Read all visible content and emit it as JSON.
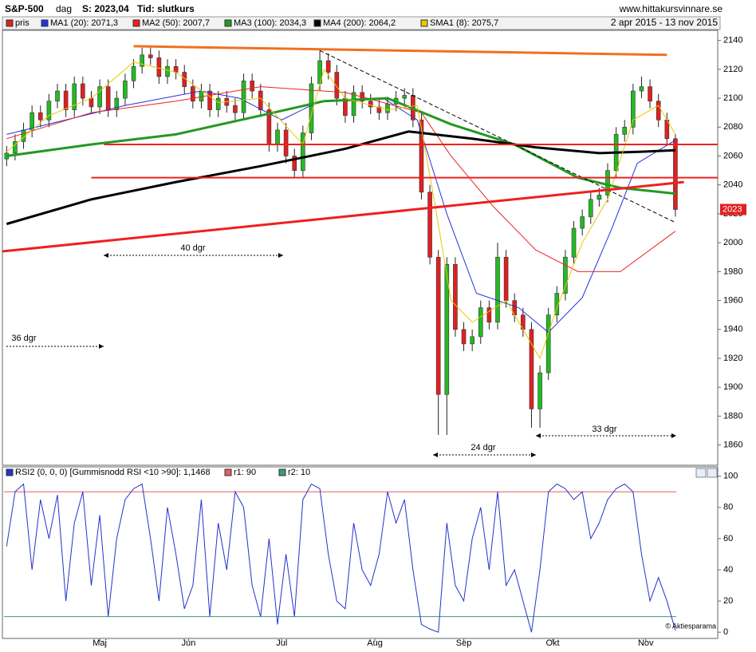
{
  "header": {
    "symbol": "S&P-500",
    "period": "dag",
    "last": "S: 2023,04",
    "mode": "Tid: slutkurs",
    "site": "www.hittakursvinnare.se",
    "range": "2 apr 2015 - 13 nov 2015"
  },
  "chart_data": [
    {
      "type": "candlestick",
      "name": "pris",
      "up_color": "#22bb22",
      "down_color": "#e02020",
      "x": [
        0,
        2,
        4,
        6,
        8,
        10,
        12,
        14,
        16,
        18,
        20,
        22,
        24,
        26,
        28,
        30,
        32,
        34,
        36,
        38,
        40,
        42,
        44,
        46,
        48,
        50,
        52,
        54,
        56,
        58,
        60,
        62,
        64,
        66,
        68,
        70,
        72,
        74,
        76,
        78,
        80,
        82,
        84,
        86,
        88,
        90,
        92,
        94,
        96,
        98,
        100,
        102,
        104,
        106,
        108,
        110,
        112,
        114,
        116,
        118,
        120,
        122,
        124,
        126,
        128,
        130,
        132,
        134,
        136,
        138,
        140,
        142,
        144,
        146,
        148,
        150,
        152,
        154,
        156,
        158
      ],
      "open": [
        2058,
        2062,
        2070,
        2078,
        2090,
        2085,
        2098,
        2105,
        2092,
        2110,
        2100,
        2094,
        2108,
        2092,
        2100,
        2112,
        2122,
        2130,
        2128,
        2115,
        2122,
        2118,
        2108,
        2098,
        2105,
        2092,
        2100,
        2095,
        2090,
        2112,
        2105,
        2092,
        2068,
        2078,
        2060,
        2050,
        2076,
        2110,
        2126,
        2118,
        2100,
        2088,
        2104,
        2098,
        2094,
        2090,
        2096,
        2100,
        2102,
        2085,
        2035,
        1990,
        1895,
        1985,
        1940,
        1930,
        1935,
        1955,
        1945,
        1990,
        1960,
        1950,
        1940,
        1885,
        1910,
        1950,
        1965,
        1990,
        2010,
        2018,
        2030,
        2033,
        2050,
        2075,
        2080,
        2105,
        2108,
        2098,
        2085,
        2072
      ],
      "high": [
        2067,
        2075,
        2083,
        2095,
        2095,
        2103,
        2110,
        2110,
        2115,
        2115,
        2105,
        2113,
        2113,
        2105,
        2117,
        2127,
        2135,
        2135,
        2133,
        2127,
        2127,
        2123,
        2113,
        2110,
        2110,
        2105,
        2105,
        2100,
        2117,
        2117,
        2110,
        2097,
        2083,
        2083,
        2065,
        2081,
        2115,
        2133,
        2131,
        2123,
        2105,
        2109,
        2109,
        2103,
        2099,
        2101,
        2105,
        2107,
        2107,
        2090,
        2040,
        1995,
        1990,
        1990,
        1945,
        1940,
        1960,
        1960,
        2000,
        1995,
        1965,
        1955,
        1945,
        1915,
        1955,
        1970,
        1995,
        2015,
        2023,
        2035,
        2038,
        2055,
        2080,
        2085,
        2110,
        2115,
        2113,
        2103,
        2090,
        2075
      ],
      "low": [
        2053,
        2057,
        2065,
        2073,
        2080,
        2080,
        2093,
        2087,
        2087,
        2095,
        2089,
        2089,
        2087,
        2087,
        2095,
        2107,
        2117,
        2123,
        2110,
        2110,
        2113,
        2103,
        2093,
        2093,
        2087,
        2087,
        2090,
        2085,
        2085,
        2100,
        2087,
        2063,
        2063,
        2055,
        2045,
        2045,
        2071,
        2105,
        2113,
        2095,
        2083,
        2083,
        2093,
        2089,
        2085,
        2085,
        2091,
        2095,
        2080,
        2030,
        1985,
        1867,
        1867,
        1935,
        1925,
        1925,
        1930,
        1940,
        1940,
        1955,
        1945,
        1935,
        1872,
        1872,
        1905,
        1945,
        1960,
        1985,
        2005,
        2013,
        2025,
        2028,
        2045,
        2070,
        2075,
        2100,
        2093,
        2080,
        2067,
        2018
      ],
      "close": [
        2062,
        2070,
        2078,
        2090,
        2085,
        2098,
        2105,
        2092,
        2110,
        2100,
        2094,
        2108,
        2092,
        2100,
        2112,
        2122,
        2130,
        2128,
        2115,
        2122,
        2118,
        2108,
        2098,
        2105,
        2092,
        2100,
        2095,
        2090,
        2112,
        2105,
        2092,
        2068,
        2078,
        2060,
        2050,
        2076,
        2110,
        2126,
        2118,
        2100,
        2088,
        2104,
        2098,
        2094,
        2090,
        2096,
        2100,
        2102,
        2085,
        2035,
        1990,
        1895,
        1985,
        1940,
        1930,
        1935,
        1955,
        1945,
        1990,
        1960,
        1950,
        1940,
        1885,
        1910,
        1950,
        1965,
        1990,
        2010,
        2018,
        2030,
        2033,
        2050,
        2075,
        2080,
        2105,
        2108,
        2098,
        2085,
        2072,
        2023
      ],
      "series": [
        {
          "name": "MA1 (20): 2071,3",
          "color": "#2233dd",
          "width": 1,
          "x": [
            0,
            28,
            46,
            55,
            65,
            74,
            89,
            97,
            104,
            111,
            121,
            128,
            136,
            143,
            149,
            158
          ],
          "values": [
            2075,
            2095,
            2105,
            2100,
            2085,
            2098,
            2100,
            2085,
            2020,
            1965,
            1955,
            1938,
            1962,
            2010,
            2055,
            2071
          ]
        },
        {
          "name": "MA2 (50): 2007,7",
          "color": "#ee2222",
          "width": 1,
          "x": [
            0,
            20,
            40,
            60,
            80,
            98,
            105,
            115,
            125,
            135,
            145,
            158
          ],
          "values": [
            2072,
            2090,
            2098,
            2108,
            2104,
            2090,
            2060,
            2025,
            1995,
            1980,
            1980,
            2008
          ]
        },
        {
          "name": "MA3 (100): 2034,3",
          "color": "#229922",
          "width": 3,
          "x": [
            0,
            20,
            40,
            60,
            75,
            90,
            105,
            120,
            135,
            145,
            158
          ],
          "values": [
            2060,
            2068,
            2075,
            2088,
            2098,
            2100,
            2082,
            2068,
            2045,
            2038,
            2034
          ]
        },
        {
          "name": "MA4 (200): 2064,2",
          "color": "#000000",
          "width": 3,
          "x": [
            0,
            20,
            40,
            60,
            80,
            95,
            110,
            125,
            140,
            150,
            158
          ],
          "values": [
            2013,
            2030,
            2042,
            2053,
            2065,
            2077,
            2072,
            2066,
            2062,
            2063,
            2064
          ]
        },
        {
          "name": "SMA1 (8): 2075,7",
          "color": "#e8c800",
          "width": 1,
          "x": [
            0,
            10,
            20,
            30,
            40,
            50,
            60,
            70,
            75,
            80,
            90,
            97,
            101,
            105,
            110,
            118,
            122,
            126,
            130,
            136,
            142,
            148,
            154,
            158
          ],
          "values": [
            2063,
            2088,
            2100,
            2125,
            2118,
            2097,
            2100,
            2068,
            2120,
            2100,
            2092,
            2095,
            2030,
            1960,
            1945,
            1960,
            1940,
            1920,
            1955,
            2000,
            2030,
            2085,
            2095,
            2075
          ]
        }
      ],
      "lines": [
        {
          "color": "#f07020",
          "width": 3,
          "dashed": false,
          "x": [
            30,
            156
          ],
          "values": [
            2136,
            2130
          ]
        },
        {
          "color": "#000000",
          "width": 1,
          "dashed": true,
          "x": [
            74,
            158
          ],
          "values": [
            2133,
            2014
          ]
        },
        {
          "color": "#ee2020",
          "width": 3,
          "dashed": false,
          "x": [
            -1,
            160
          ],
          "values": [
            1994,
            2042
          ]
        },
        {
          "color": "#ee2020",
          "width": 2,
          "dashed": false,
          "x": [
            23,
            168
          ],
          "values": [
            2068,
            2068
          ]
        },
        {
          "color": "#ee2020",
          "width": 2,
          "dashed": false,
          "x": [
            20,
            168
          ],
          "values": [
            2045,
            2045
          ]
        }
      ],
      "annotations": [
        "40 dgr",
        "36 dgr",
        "24 dgr",
        "33 dgr"
      ],
      "xlim": [
        -1,
        168
      ],
      "ylim": [
        1846,
        2147
      ],
      "yticks": [
        1860,
        1880,
        1900,
        1920,
        1940,
        1960,
        1980,
        2000,
        2020,
        2040,
        2060,
        2080,
        2100,
        2120,
        2140
      ],
      "xticks": [
        {
          "value": 22,
          "label": "Maj"
        },
        {
          "value": 43,
          "label": "Jun"
        },
        {
          "value": 65,
          "label": "Jul"
        },
        {
          "value": 87,
          "label": "Aug"
        },
        {
          "value": 108,
          "label": "Sep"
        },
        {
          "value": 129,
          "label": "Okt"
        },
        {
          "value": 151,
          "label": "Nov"
        }
      ]
    },
    {
      "type": "line",
      "name": "RSI2 (0, 0, 0) [Gummisnodd RSI <10 >90]: 1,1468",
      "color": "#2233cc",
      "x": [
        0,
        2,
        4,
        6,
        8,
        10,
        12,
        14,
        16,
        18,
        20,
        22,
        24,
        26,
        28,
        30,
        32,
        34,
        36,
        38,
        40,
        42,
        44,
        46,
        48,
        50,
        52,
        54,
        56,
        58,
        60,
        62,
        64,
        66,
        68,
        70,
        72,
        74,
        76,
        78,
        80,
        82,
        84,
        86,
        88,
        90,
        92,
        94,
        96,
        98,
        100,
        102,
        104,
        106,
        108,
        110,
        112,
        114,
        116,
        118,
        120,
        122,
        124,
        126,
        128,
        130,
        132,
        134,
        136,
        138,
        140,
        142,
        144,
        146,
        148,
        150,
        152,
        154,
        156,
        158
      ],
      "values": [
        55,
        90,
        95,
        40,
        85,
        60,
        88,
        20,
        70,
        90,
        30,
        75,
        10,
        60,
        85,
        92,
        95,
        60,
        20,
        80,
        50,
        15,
        30,
        85,
        10,
        70,
        40,
        90,
        80,
        30,
        10,
        60,
        5,
        50,
        10,
        85,
        95,
        92,
        50,
        20,
        15,
        70,
        40,
        30,
        50,
        90,
        70,
        85,
        40,
        5,
        2,
        0,
        70,
        30,
        20,
        60,
        80,
        40,
        90,
        30,
        40,
        20,
        0,
        40,
        90,
        95,
        92,
        85,
        90,
        60,
        70,
        85,
        92,
        95,
        90,
        50,
        20,
        35,
        20,
        1.1468
      ],
      "levels": [
        {
          "name": "r1: 90",
          "value": 90,
          "color": "#e06060"
        },
        {
          "name": "r2: 10",
          "value": 10,
          "color": "#3a9a7a"
        }
      ],
      "xlim": [
        -1,
        168
      ],
      "ylim": [
        -4,
        106
      ],
      "yticks": [
        0,
        20,
        40,
        60,
        80,
        100
      ],
      "credit": "© Aktiesparama"
    }
  ]
}
